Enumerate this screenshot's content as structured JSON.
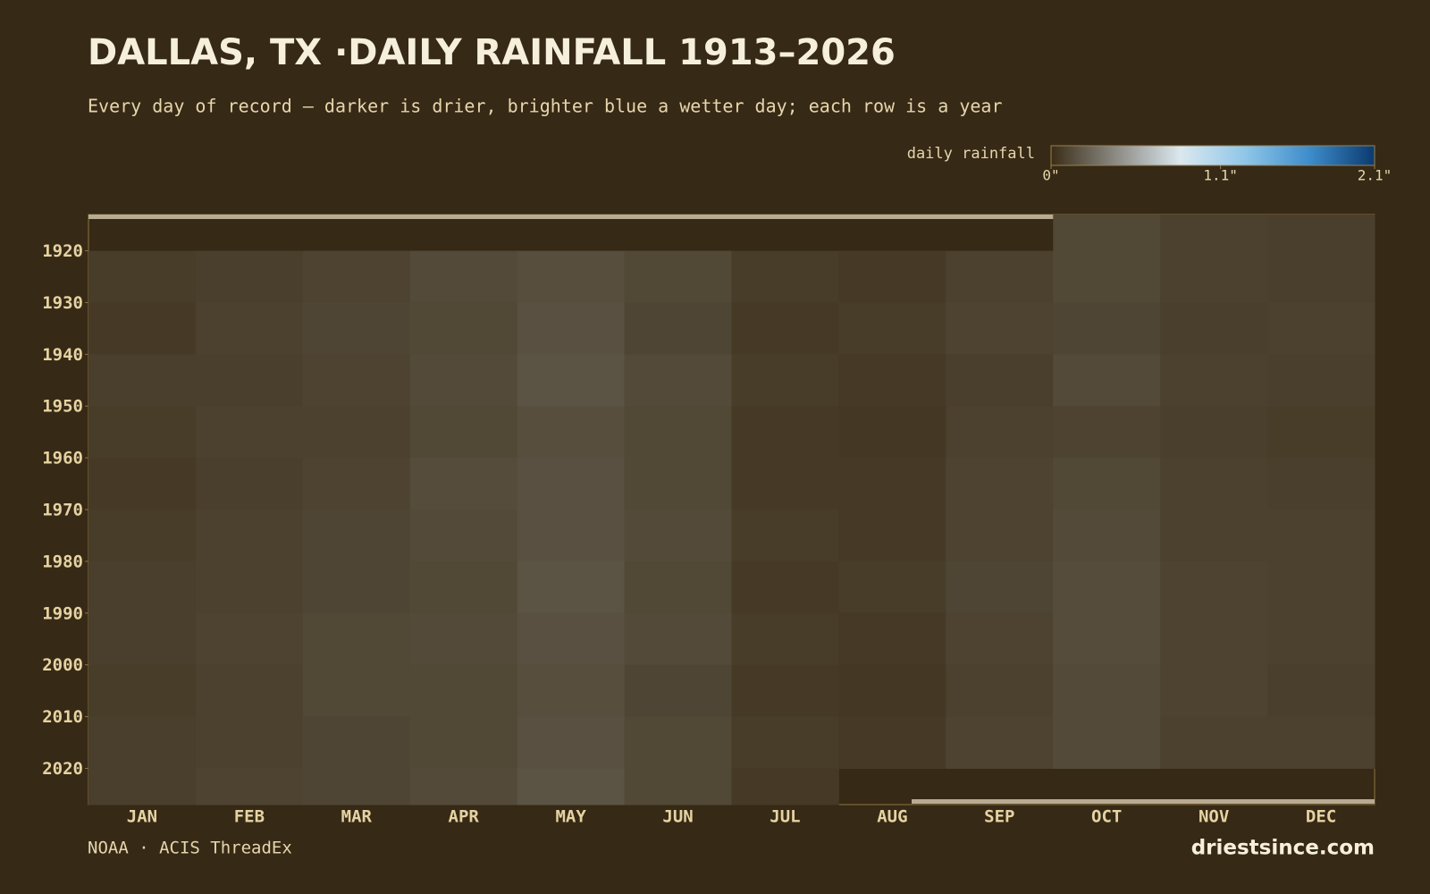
{
  "chart_data": {
    "type": "heatmap",
    "title": "DALLAS, TX ·DAILY RAINFALL 1913–2026",
    "subtitle": "Every day of record — darker is drier, brighter blue a wetter day; each row is a year",
    "colorbar_label": "daily rainfall",
    "colorbar_lim": [
      0,
      2.1
    ],
    "colorbar_ticks": [
      {
        "value": 0,
        "label": "0\""
      },
      {
        "value": 1.1,
        "label": "1.1\""
      },
      {
        "value": 2.1,
        "label": "2.1\""
      }
    ],
    "colors": [
      "#3a2d17",
      "#8c8a84",
      "#dbe8ef",
      "#8fc6e8",
      "#3d8ccb",
      "#0b3a6e"
    ],
    "categories": [
      "JAN",
      "FEB",
      "MAR",
      "APR",
      "MAY",
      "JUN",
      "JUL",
      "AUG",
      "SEP",
      "OCT",
      "NOV",
      "DEC"
    ],
    "y": [
      1913,
      1920,
      1930,
      1940,
      1950,
      1960,
      1970,
      1980,
      1990,
      2000,
      2010,
      2020
    ],
    "ylim": [
      1913,
      2027
    ],
    "yticks": [
      1920,
      1930,
      1940,
      1950,
      1960,
      1970,
      1980,
      1990,
      2000,
      2010,
      2020
    ],
    "values": [
      [
        null,
        null,
        null,
        null,
        null,
        null,
        null,
        null,
        null,
        0.12,
        0.09,
        0.08
      ],
      [
        0.07,
        0.08,
        0.1,
        0.13,
        0.15,
        0.12,
        0.07,
        0.06,
        0.09,
        0.12,
        0.09,
        0.08
      ],
      [
        0.06,
        0.09,
        0.11,
        0.12,
        0.16,
        0.11,
        0.06,
        0.07,
        0.1,
        0.11,
        0.08,
        0.09
      ],
      [
        0.08,
        0.08,
        0.1,
        0.13,
        0.17,
        0.13,
        0.07,
        0.06,
        0.08,
        0.13,
        0.09,
        0.08
      ],
      [
        0.07,
        0.09,
        0.09,
        0.12,
        0.15,
        0.12,
        0.06,
        0.05,
        0.09,
        0.1,
        0.08,
        0.07
      ],
      [
        0.06,
        0.08,
        0.1,
        0.14,
        0.16,
        0.12,
        0.06,
        0.06,
        0.1,
        0.12,
        0.09,
        0.08
      ],
      [
        0.07,
        0.09,
        0.11,
        0.13,
        0.16,
        0.13,
        0.07,
        0.06,
        0.1,
        0.13,
        0.09,
        0.09
      ],
      [
        0.08,
        0.09,
        0.11,
        0.12,
        0.17,
        0.12,
        0.06,
        0.07,
        0.11,
        0.14,
        0.1,
        0.09
      ],
      [
        0.08,
        0.1,
        0.12,
        0.13,
        0.16,
        0.13,
        0.07,
        0.06,
        0.1,
        0.14,
        0.1,
        0.09
      ],
      [
        0.07,
        0.09,
        0.12,
        0.12,
        0.15,
        0.11,
        0.06,
        0.05,
        0.09,
        0.13,
        0.1,
        0.08
      ],
      [
        0.08,
        0.09,
        0.11,
        0.12,
        0.16,
        0.12,
        0.07,
        0.06,
        0.1,
        0.13,
        0.09,
        0.09
      ],
      [
        0.08,
        0.1,
        0.11,
        0.13,
        0.17,
        0.12,
        0.06,
        null,
        null,
        null,
        null,
        null
      ]
    ],
    "source": "NOAA · ACIS ThreadEx",
    "brand": "driestsince.com"
  }
}
